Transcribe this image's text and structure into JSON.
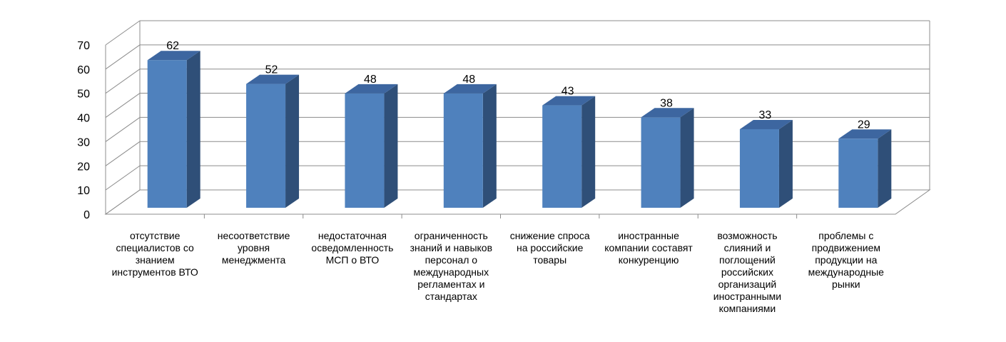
{
  "chart_data": {
    "type": "bar",
    "title": "",
    "xlabel": "",
    "ylabel": "",
    "ylim": [
      0,
      70
    ],
    "yticks": [
      0,
      10,
      20,
      30,
      40,
      50,
      60,
      70
    ],
    "grid": true,
    "style": "3d-column",
    "categories": [
      "отсутствие специалистов со знанием инструментов ВТО",
      "несоответствие уровня менеджмента",
      "недостаточная осведомленность МСП о ВТО",
      "ограниченность знаний и навыков персонал о международных регламентах и стандартах",
      "снижение спроса на российские товары",
      "иностранные компании составят конкуренцию",
      "возможность слияний и поглощений российских организаций иностранными компаниями",
      "проблемы с продвижением продукции на международные рынки"
    ],
    "values": [
      62,
      52,
      48,
      48,
      43,
      38,
      33,
      29
    ],
    "colors": {
      "bar_front": "#4f81bd",
      "bar_side": "#2f4f78",
      "bar_top": "#3d66a0",
      "grid": "#8c8c8c"
    }
  }
}
